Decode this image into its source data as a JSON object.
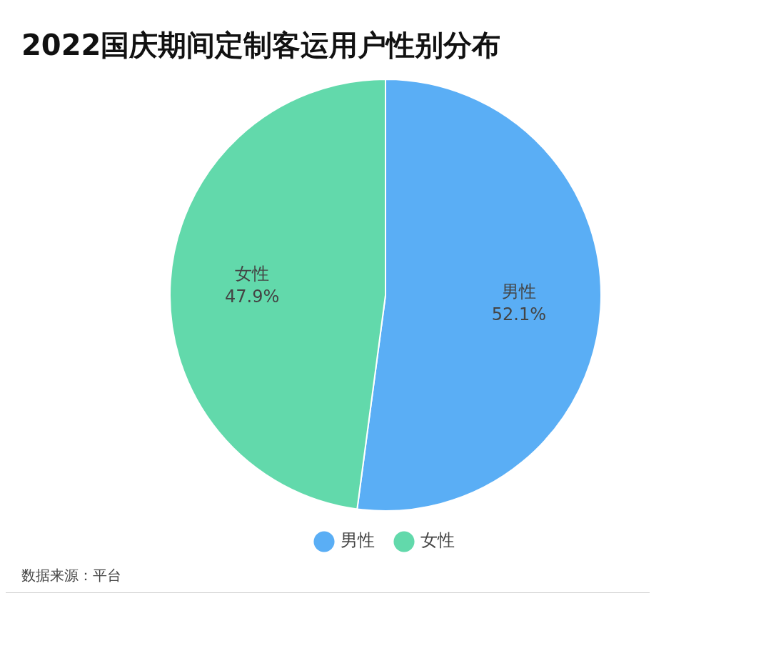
{
  "chart_data": {
    "type": "pie",
    "title": "2022国庆期间定制客运用户性别分布",
    "categories": [
      "男性",
      "女性"
    ],
    "values": [
      52.1,
      47.9
    ],
    "colors": [
      "#5aaef5",
      "#62d9ab"
    ],
    "value_labels": [
      "52.1%",
      "47.9%"
    ],
    "legend": "bottom",
    "annotations": [
      "数据来源：平台"
    ]
  }
}
